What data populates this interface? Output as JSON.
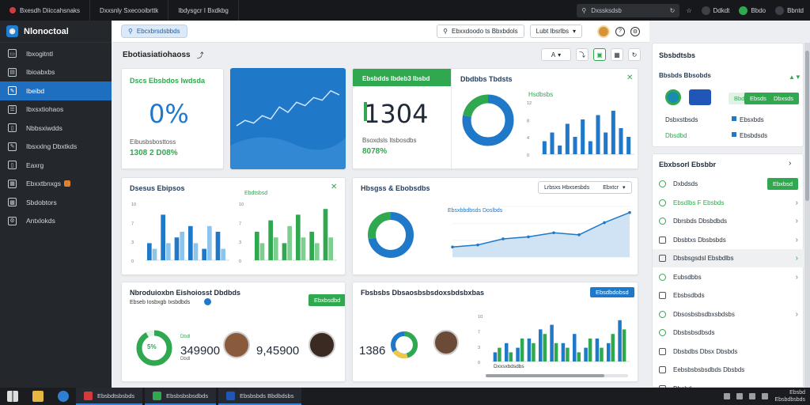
{
  "browser": {
    "tabs": [
      "Bxesdh Diiccahsnaks",
      "Dxxsnly Sxecooibrttk",
      "Ibdysgcr I Bxdkbg"
    ],
    "search_text": "Dxssksdsb",
    "profiles": [
      "Ddkdt",
      "Bbdo",
      "Bbntd"
    ]
  },
  "sidebar": {
    "brand": "Nlonoctoal",
    "items": [
      {
        "label": "Ibxogitntl",
        "icon": "monitor-icon"
      },
      {
        "label": "Ibioabxbs",
        "icon": "inbox-icon"
      },
      {
        "label": "Ibeibd",
        "icon": "pen-icon",
        "active": true
      },
      {
        "label": "Ibxsxtiohaos",
        "icon": "list-icon"
      },
      {
        "label": "Nbbsxiwdds",
        "icon": "folder-icon"
      },
      {
        "label": "Ibsxxlng Dbxtkds",
        "icon": "pen-icon"
      },
      {
        "label": "Eaxrg",
        "icon": "folder-icon"
      },
      {
        "label": "Ebxxtbnxgs",
        "icon": "calendar-icon",
        "badge": true
      },
      {
        "label": "Sbdobtors",
        "icon": "grid-icon"
      },
      {
        "label": "Antxlokds",
        "icon": "settings-icon"
      }
    ]
  },
  "header": {
    "search_pill": "Ebcxbrsdsbbds",
    "select_label": "Ebxxdoodo ts Bbxbdols",
    "select2_label": "Lubt Ibsrlbs"
  },
  "page": {
    "title": "Ebotiasiatiohaoss",
    "toolbar_menu": "A",
    "tool_icons": [
      "pin-icon",
      "image-icon",
      "gallery-icon",
      "refresh-icon"
    ]
  },
  "cards": {
    "kpi1": {
      "title": "Dscs Ebsbdos Iwdsda",
      "value": "0%",
      "sub": "Eibusbsbosttoss",
      "stat": "1308 2 D08%"
    },
    "kpi2": {
      "title": "Ebsbdds Ibdeb3 Ibsbd",
      "value": "1304",
      "sub": "Bsoxdsls Itsbosdbs",
      "stat": "8078%"
    },
    "kpi3": {
      "title": "Dbdbbs Tbdsts",
      "legend": "Hsdbsbs"
    },
    "card4": {
      "title": "Dsesus Ebipsos",
      "legend": "Ebdtsbsd"
    },
    "card5": {
      "title": "Hbsgss & Ebobsdbs",
      "select": "Lrbsxs Hbxsesbds",
      "select_btn": "Ebxtcr",
      "series_label": "Ebsxbbdbsds Doslbds"
    },
    "card6": {
      "title": "Nbroduioxbn Eishoiosst Dbdbds",
      "sub": "Ebseb Iosbxgb Ixsbdbds",
      "button": "Ebxbsdbd",
      "value_ring": "5%",
      "value_a": "349900",
      "value_b": "9,45900",
      "ring_sub": "Dbdl"
    },
    "card7": {
      "title": "Fbsbsbs Dbsaosbsbsdoxsbdsbxbas",
      "button": "Ebsdbdobsd",
      "value": "1386",
      "legend": "Dxxsxbdsdbs"
    }
  },
  "right_panel": {
    "card1": {
      "title": "Sbsbdtsbs",
      "subtitle": "Bbsbds Bbsobds",
      "buttons": [
        "Bbd",
        "Ebsds",
        "Dbxsds"
      ],
      "rows": [
        "Dsbxstbsds",
        "Ebsxbds",
        "Dbsdbd",
        "Ebsbdsds"
      ]
    },
    "card2": {
      "title": "Ebxbsorl Ebsbbr",
      "button": "Ebxbsd",
      "rows": [
        {
          "label": "Dxbdsds",
          "icon": "circle-icon",
          "action": "button"
        },
        {
          "label": "Ebsdlbs F Ebsbds",
          "icon": "circle-icon",
          "green": true,
          "chev": true
        },
        {
          "label": "Dbrsbds Dbsbdbds",
          "icon": "circle-icon",
          "chev": true
        },
        {
          "label": "Dbsbtxs Dbsbsbds",
          "icon": "square-icon",
          "chev": true
        },
        {
          "label": "Dbsbsgsdsl Ebsbdlbs",
          "icon": "square-icon",
          "highlight": true,
          "chev": true
        },
        {
          "label": "Eubsdbbs",
          "icon": "circle-icon",
          "chev": true
        },
        {
          "label": "Ebsbsdbds",
          "icon": "square-icon"
        },
        {
          "label": "Dbsosbsbsdbxsbdsbs",
          "icon": "circle-icon",
          "chev": true
        },
        {
          "label": "Dbsbsbsdbsds",
          "icon": "circle-icon"
        },
        {
          "label": "Dbsbdbs Dbsx Dbsbds",
          "icon": "square-icon"
        },
        {
          "label": "Eebsbsbsbsdbds Dbsbds",
          "icon": "square-icon"
        },
        {
          "label": "Dbsbd",
          "icon": "square-icon"
        }
      ]
    }
  },
  "taskbar": {
    "apps": [
      "Ebsbdtsbsbds",
      "Ebsbsbsbsdbds",
      "Ebsbsbds Bbdbdsbs"
    ],
    "time": "Ebsbd",
    "date": "Ebsbdbsbds"
  },
  "chart_data": [
    {
      "type": "line",
      "name": "kpi1-sparkline",
      "x": [
        0,
        1,
        2,
        3,
        4,
        5,
        6,
        7,
        8,
        9,
        10,
        11,
        12
      ],
      "values": [
        20,
        28,
        24,
        35,
        30,
        48,
        40,
        55,
        50,
        62,
        58,
        72,
        66
      ]
    },
    {
      "type": "bar",
      "name": "kpi3-bars",
      "categories": [
        "a",
        "b",
        "c",
        "d",
        "e",
        "f",
        "g",
        "h",
        "i",
        "j",
        "k",
        "l"
      ],
      "values": [
        3,
        5,
        2,
        7,
        4,
        8,
        3,
        9,
        5,
        10,
        6,
        4
      ],
      "ylim": [
        0,
        12
      ]
    },
    {
      "type": "pie",
      "name": "kpi2-donut",
      "values": [
        78,
        22
      ],
      "colors": [
        "#1f78c8",
        "#2fa84f"
      ]
    },
    {
      "type": "bar",
      "name": "card4-bars-left",
      "series": [
        {
          "name": "blue",
          "values": [
            3,
            8,
            4,
            6,
            2,
            5
          ]
        },
        {
          "name": "lightblue",
          "values": [
            2,
            3,
            5,
            3,
            6,
            2
          ]
        }
      ],
      "categories": [
        "a",
        "b",
        "c",
        "d",
        "e",
        "f"
      ],
      "ylim": [
        0,
        10
      ]
    },
    {
      "type": "bar",
      "name": "card4-bars-right",
      "series": [
        {
          "name": "green",
          "values": [
            5,
            7,
            3,
            8,
            5,
            9
          ]
        },
        {
          "name": "darkgreen",
          "values": [
            3,
            4,
            6,
            4,
            3,
            4
          ]
        }
      ],
      "categories": [
        "a",
        "b",
        "c",
        "d",
        "e",
        "f"
      ],
      "ylim": [
        0,
        10
      ]
    },
    {
      "type": "pie",
      "name": "card5-donut",
      "values": [
        72,
        28
      ],
      "colors": [
        "#1f78c8",
        "#2fa84f"
      ]
    },
    {
      "type": "area",
      "name": "card5-area",
      "x": [
        0,
        1,
        2,
        3,
        4,
        5,
        6,
        7
      ],
      "values": [
        10,
        12,
        18,
        20,
        24,
        22,
        34,
        44
      ],
      "ylim": [
        0,
        50
      ]
    },
    {
      "type": "bar",
      "name": "card7-bars",
      "series": [
        {
          "name": "blue",
          "values": [
            2,
            4,
            3,
            5,
            7,
            8,
            4,
            6,
            3,
            5,
            4,
            9
          ]
        },
        {
          "name": "green",
          "values": [
            3,
            2,
            5,
            4,
            6,
            4,
            3,
            2,
            5,
            3,
            6,
            7
          ]
        }
      ],
      "categories": [
        "1",
        "2",
        "3",
        "4",
        "5",
        "6",
        "7",
        "8",
        "9",
        "10",
        "11",
        "12"
      ],
      "ylim": [
        0,
        10
      ]
    }
  ]
}
